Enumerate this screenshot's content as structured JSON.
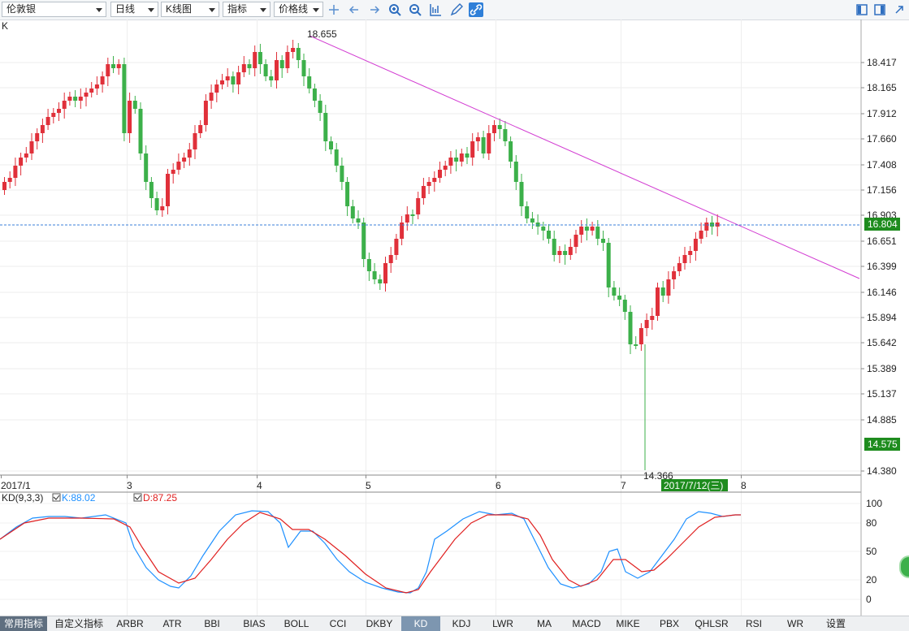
{
  "toolbar": {
    "symbol": "伦敦银",
    "period": "日线",
    "chart_type": "K线图",
    "indicator": "指标",
    "price_line": "价格线",
    "icons": [
      "crosshair-icon",
      "arrow-left-icon",
      "arrow-right-icon",
      "zoom-in-icon",
      "zoom-out-icon",
      "bar-chart-icon",
      "pencil-icon",
      "link-icon"
    ],
    "right_icons": [
      "panel-left-icon",
      "panel-right-icon",
      "expand-icon"
    ]
  },
  "main_chart": {
    "label": "K",
    "y_ticks": [
      "18.417",
      "18.165",
      "17.912",
      "17.660",
      "17.408",
      "17.156",
      "16.903",
      "16.651",
      "16.399",
      "16.146",
      "15.894",
      "15.642",
      "15.389",
      "15.137",
      "14.885",
      "14.380"
    ],
    "current_price": "16.804",
    "low_price_tag": "14.575",
    "high_label": "18.655",
    "low_label": "14.366",
    "x_labels": [
      "2017/1",
      "3",
      "4",
      "5",
      "6",
      "7",
      "8"
    ],
    "date_tag": "2017/7/12(三)"
  },
  "kd_panel": {
    "title": "KD(9,3,3)",
    "k_label": "K:88.02",
    "d_label": "D:87.25",
    "y_ticks": [
      "100",
      "80",
      "50",
      "20",
      "0"
    ]
  },
  "bottom_tabs": [
    "常用指标",
    "自定义指标",
    "ARBR",
    "ATR",
    "BBI",
    "BIAS",
    "BOLL",
    "CCI",
    "DKBY",
    "KD",
    "KDJ",
    "LWR",
    "MA",
    "MACD",
    "MIKE",
    "PBX",
    "QHLSR",
    "RSI",
    "WR",
    "设置"
  ],
  "colors": {
    "up": "#e0303a",
    "down": "#3cb04a",
    "trendline": "#d23cd2",
    "k_line": "#1e90ff",
    "d_line": "#e02020",
    "price_tag": "#1e8c1e"
  }
}
